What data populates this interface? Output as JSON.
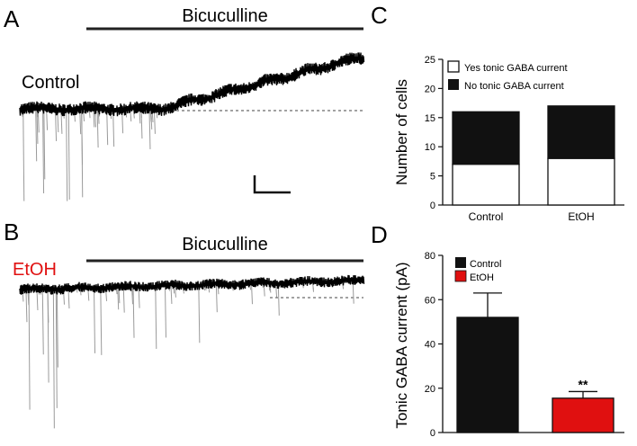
{
  "panels": {
    "a": {
      "letter": "A",
      "drug_label": "Bicuculline",
      "condition_label": "Control",
      "condition_color": "#111111"
    },
    "b": {
      "letter": "B",
      "drug_label": "Bicuculline",
      "condition_label": "EtOH",
      "condition_color": "#e01010"
    },
    "c": {
      "letter": "C"
    },
    "d": {
      "letter": "D"
    }
  },
  "chart_data": [
    {
      "type": "bar",
      "stacked": true,
      "categories": [
        "Control",
        "EtOH"
      ],
      "series": [
        {
          "name": "Yes tonic GABA current",
          "values": [
            7,
            8
          ],
          "color": "#ffffff"
        },
        {
          "name": "No tonic GABA current",
          "values": [
            9,
            9
          ],
          "color": "#111111"
        }
      ],
      "ylabel": "Number of cells",
      "ylim": [
        0,
        25
      ],
      "yticks": [
        0,
        5,
        10,
        15,
        20,
        25
      ],
      "legend_position": "top-right",
      "grid": false
    },
    {
      "type": "bar",
      "categories": [
        "Control",
        "EtOH"
      ],
      "values": [
        52,
        15.5
      ],
      "errors": [
        11,
        3
      ],
      "colors": [
        "#111111",
        "#e01010"
      ],
      "series_names": [
        "Control",
        "EtOH"
      ],
      "ylabel": "Tonic GABA current (pA)",
      "ylim": [
        0,
        80
      ],
      "yticks": [
        0,
        20,
        40,
        60,
        80
      ],
      "significance": "**",
      "legend_position": "top-left",
      "grid": false
    }
  ]
}
